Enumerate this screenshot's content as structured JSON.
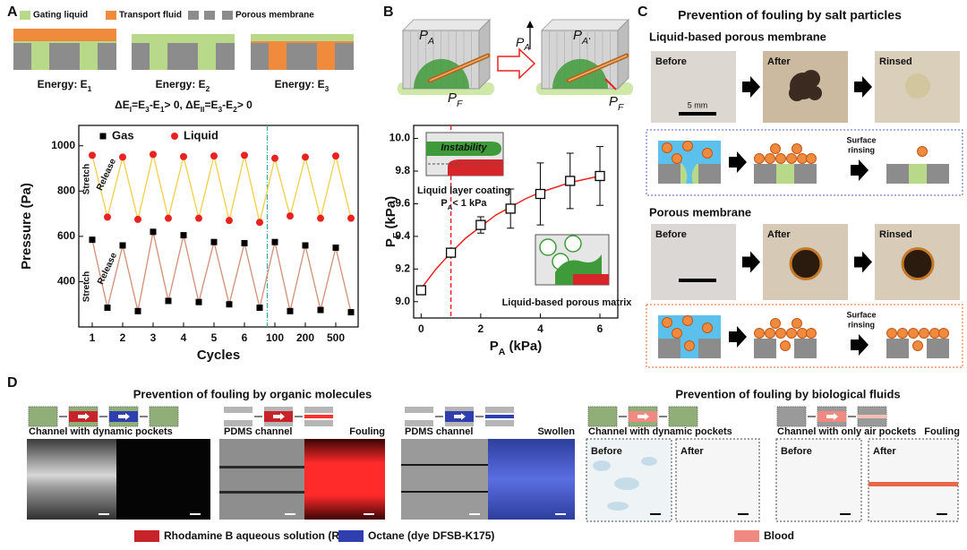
{
  "panel_labels": [
    "A",
    "B",
    "C",
    "D"
  ],
  "panel_a": {
    "legend": [
      "Gating liquid",
      "Transport fluid",
      "Porous membrane"
    ],
    "energy": [
      [
        {
          "t": "Energy: "
        },
        {
          "t": "E",
          "s": "1"
        }
      ],
      [
        {
          "t": "Energy: "
        },
        {
          "t": "E",
          "s": "2"
        }
      ],
      [
        {
          "t": "Energy: "
        },
        {
          "t": "E",
          "s": "3"
        }
      ]
    ],
    "equation": [
      {
        "t": "ΔE",
        "s": "I"
      },
      {
        "t": "=E",
        "s": "3"
      },
      {
        "t": "-E",
        "s": "1"
      },
      {
        "t": "> 0, ΔE",
        "s": "II"
      },
      {
        "t": "=E",
        "s": "3"
      },
      {
        "t": "-E",
        "s": "2"
      },
      {
        "t": "> 0"
      }
    ]
  },
  "panel_b": {
    "left_top": [
      {
        "t": "P",
        "s": "A"
      }
    ],
    "left_bottom": [
      {
        "t": "P",
        "s": "F"
      }
    ],
    "arrow": [
      {
        "t": "P",
        "s": "A"
      }
    ],
    "right_top": [
      {
        "t": "P",
        "s": "A'"
      }
    ],
    "right_bottom": [
      {
        "t": "P",
        "s": "F"
      }
    ]
  },
  "panel_c": {
    "title": "Prevention of fouling by salt particles",
    "scale": "5 mm",
    "rows": [
      {
        "heading": "Liquid-based porous membrane",
        "photos": [
          "Before",
          "After",
          "Rinsed"
        ],
        "step": [
          "Surface",
          "rinsing"
        ]
      },
      {
        "heading": "Porous membrane",
        "photos": [
          "Before",
          "After",
          "Rinsed"
        ],
        "step": [
          "Surface",
          "rinsing"
        ]
      }
    ]
  },
  "panel_d": {
    "titles": [
      "Prevention of fouling by organic molecules",
      "Prevention of fouling by biological fluids"
    ],
    "groups": [
      {
        "label": "Channel with dynamic pockets"
      },
      {
        "label": "PDMS channel",
        "status": "Fouling"
      },
      {
        "label": "PDMS channel",
        "status": "Swollen"
      },
      {
        "label": "Channel with dynamic pockets",
        "frames": [
          "Before",
          "After"
        ]
      },
      {
        "label": "Channel with only air pockets",
        "status": "Fouling",
        "frames": [
          "Before",
          "After"
        ]
      }
    ],
    "legend": [
      {
        "label": "Rhodamine B aqueous solution (RB)",
        "color": "#c8232a"
      },
      {
        "label": "Octane (dye DFSB-K175)",
        "color": "#2f3fb0"
      },
      {
        "label": "Blood",
        "color": "#f08a80"
      }
    ]
  },
  "chart_data": [
    {
      "type": "line",
      "xlabel": "Cycles",
      "ylabel": "Pressure (Pa)",
      "categories": [
        "1",
        null,
        "2",
        null,
        "3",
        null,
        "4",
        null,
        "5",
        null,
        "6",
        null,
        "100",
        null,
        "200",
        null,
        "500",
        null
      ],
      "ylim": [
        200,
        1090
      ],
      "yticks": [
        400,
        600,
        800,
        1000
      ],
      "series": [
        {
          "name": "Gas",
          "color": "#000000",
          "marker": "square",
          "line_color": "#d09078",
          "values": [
            585,
            285,
            560,
            270,
            620,
            315,
            605,
            310,
            575,
            300,
            570,
            285,
            575,
            270,
            560,
            275,
            550,
            265
          ]
        },
        {
          "name": "Liquid",
          "color": "#e8231f",
          "marker": "circle",
          "line_color": "#f2cf48",
          "values": [
            958,
            685,
            950,
            675,
            962,
            680,
            952,
            680,
            955,
            670,
            958,
            662,
            945,
            690,
            950,
            680,
            955,
            680
          ]
        }
      ],
      "annotations": [
        "Stretch",
        "Release",
        "Stretch",
        "Release"
      ]
    },
    {
      "type": "scatter",
      "xlabel": [
        {
          "t": "P",
          "s": "A"
        },
        {
          "t": " (kPa)"
        }
      ],
      "ylabel": [
        {
          "t": "P",
          "s": "F"
        },
        {
          "t": " (kPa)"
        }
      ],
      "x": [
        0,
        1,
        2,
        3,
        4,
        5,
        6
      ],
      "values": [
        9.07,
        9.3,
        9.47,
        9.57,
        9.66,
        9.74,
        9.77
      ],
      "errors": [
        0.02,
        0.02,
        0.05,
        0.12,
        0.19,
        0.17,
        0.18
      ],
      "color": "#000000",
      "marker": "open-square",
      "fit": {
        "color": "#e8231f",
        "x": [
          0,
          0.5,
          1,
          1.5,
          2,
          2.5,
          3,
          3.5,
          4,
          4.5,
          5,
          5.5,
          6
        ],
        "values": [
          9.08,
          9.2,
          9.3,
          9.39,
          9.46,
          9.53,
          9.58,
          9.63,
          9.67,
          9.7,
          9.73,
          9.75,
          9.77
        ]
      },
      "vline": {
        "x": 1,
        "color": "#e8231f"
      },
      "xlim": [
        -0.25,
        6.6
      ],
      "xticks": [
        0,
        2,
        4,
        6
      ],
      "ylim": [
        8.9,
        10.08
      ],
      "yticks": [
        {
          "value": 9,
          "label": "9.0"
        },
        9.2,
        9.4,
        9.6,
        9.8,
        {
          "value": 10,
          "label": "10.0"
        }
      ],
      "annotations": {
        "instability": "Instability",
        "coating": "Liquid layer coating",
        "condition": [
          {
            "t": "P",
            "s": "A"
          },
          {
            "t": "< 1 kPa"
          }
        ],
        "matrix": "Liquid-based porous matrix"
      }
    }
  ]
}
